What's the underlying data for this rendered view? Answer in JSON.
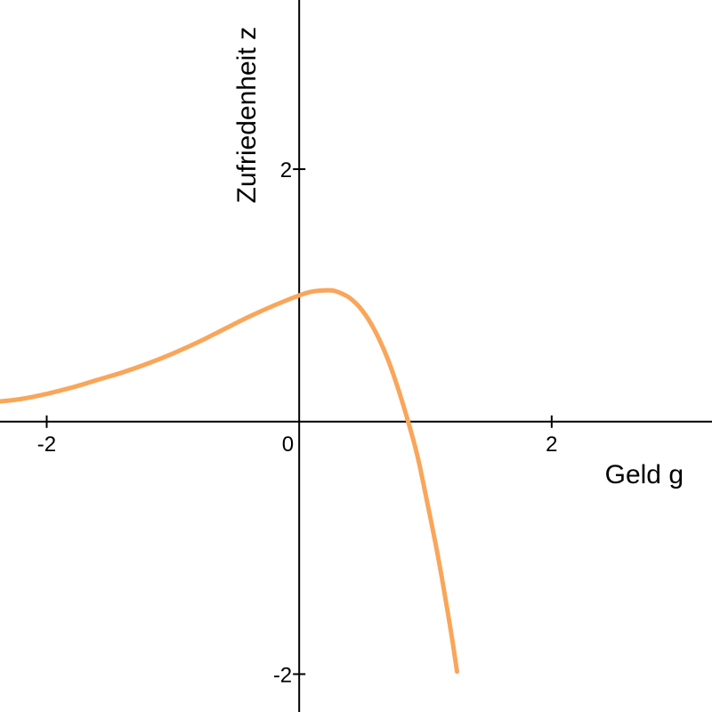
{
  "chart_data": {
    "type": "line",
    "title": "",
    "xlabel": "Geld g",
    "ylabel": "Zufriedenheit z",
    "xlim": [
      -2.37,
      3.27
    ],
    "ylim": [
      -2.3,
      3.34
    ],
    "grid": false,
    "legend": "none",
    "x_ticks": [
      {
        "value": -2,
        "label": "-2"
      },
      {
        "value": 2,
        "label": "2"
      }
    ],
    "y_ticks": [
      {
        "value": -2,
        "label": "-2"
      },
      {
        "value": 2,
        "label": "2"
      }
    ],
    "origin_label": "0",
    "colors": {
      "curve": "#F9A65A",
      "axis": "#000000"
    },
    "series": [
      {
        "x": [
          -2.37,
          -2.2,
          -2.0,
          -1.8,
          -1.6,
          -1.4,
          -1.2,
          -1.0,
          -0.8,
          -0.6,
          -0.4,
          -0.2,
          0.0,
          0.1,
          0.2,
          0.25,
          0.3,
          0.4,
          0.5,
          0.6,
          0.7,
          0.8,
          0.9,
          0.95,
          1.0,
          1.1,
          1.2,
          1.25
        ],
        "y": [
          0.16,
          0.18,
          0.22,
          0.27,
          0.33,
          0.39,
          0.46,
          0.54,
          0.63,
          0.73,
          0.83,
          0.92,
          1.0,
          1.03,
          1.04,
          1.04,
          1.03,
          0.98,
          0.88,
          0.72,
          0.5,
          0.21,
          -0.13,
          -0.33,
          -0.57,
          -1.07,
          -1.65,
          -1.98
        ]
      }
    ]
  }
}
